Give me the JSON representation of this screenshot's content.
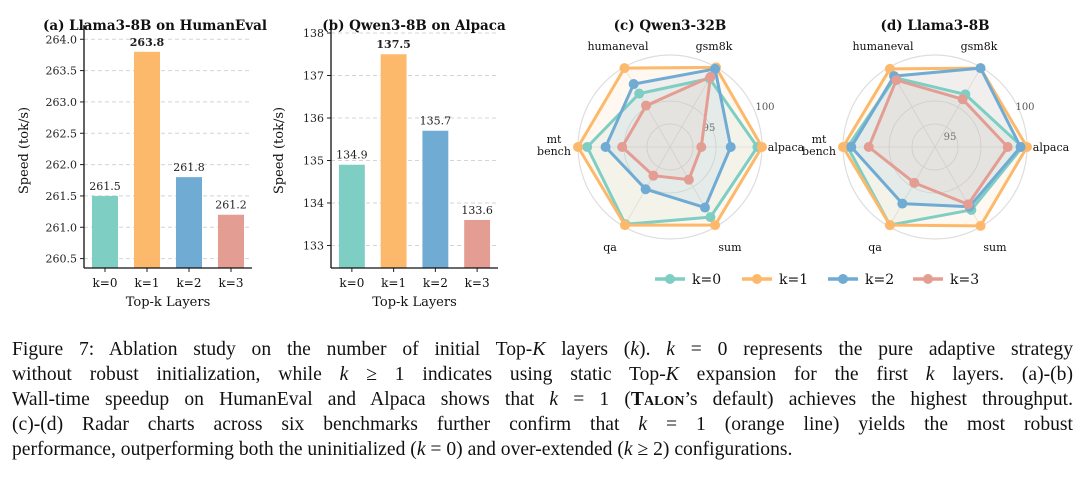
{
  "chart_data": [
    {
      "type": "bar",
      "title": "(a) Llama3-8B on HumanEval",
      "xlabel": "Top-k Layers",
      "ylabel": "Speed (tok/s)",
      "categories": [
        "k=0",
        "k=1",
        "k=2",
        "k=3"
      ],
      "values": [
        261.5,
        263.8,
        261.8,
        261.2
      ],
      "value_labels": [
        "261.5",
        "263.8",
        "261.8",
        "261.2"
      ],
      "bold_label_index": 1,
      "ylim": [
        260.35,
        264.1
      ],
      "yticks": [
        260.5,
        261.0,
        261.5,
        262.0,
        262.5,
        263.0,
        263.5,
        264.0
      ],
      "ytick_labels": [
        "260.5",
        "261.0",
        "261.5",
        "262.0",
        "262.5",
        "263.0",
        "263.5",
        "264.0"
      ],
      "colors": [
        "#7ecec4",
        "#fdb96b",
        "#70abd4",
        "#e49d92"
      ],
      "grid": true
    },
    {
      "type": "bar",
      "title": "(b) Qwen3-8B on Alpaca",
      "xlabel": "Top-k Layers",
      "ylabel": "Speed (tok/s)",
      "categories": [
        "k=0",
        "k=1",
        "k=2",
        "k=3"
      ],
      "values": [
        134.9,
        137.5,
        135.7,
        133.6
      ],
      "value_labels": [
        "134.9",
        "137.5",
        "135.7",
        "133.6"
      ],
      "bold_label_index": 1,
      "ylim": [
        132.47,
        138.0
      ],
      "yticks": [
        133,
        134,
        135,
        136,
        137,
        138
      ],
      "ytick_labels": [
        "133",
        "134",
        "135",
        "136",
        "137",
        "138"
      ],
      "colors": [
        "#7ecec4",
        "#fdb96b",
        "#70abd4",
        "#e49d92"
      ],
      "grid": true
    },
    {
      "type": "radar",
      "title": "(c) Qwen3-32B",
      "axes": [
        "gsm8k",
        "humaneval",
        "mt\nbench",
        "qa",
        "sum",
        "alpaca"
      ],
      "ring_labels": [
        "95",
        "100"
      ],
      "value_scale": "relative radius (0 = center, 1 = outer ring)",
      "series": [
        {
          "name": "k=0",
          "color": "#7ecec4",
          "values": [
            0.86,
            0.67,
            0.9,
            0.97,
            0.88,
            0.95
          ]
        },
        {
          "name": "k=1",
          "color": "#fdb96b",
          "values": [
            1.0,
            0.99,
            1.0,
            0.98,
            0.98,
            1.0
          ]
        },
        {
          "name": "k=2",
          "color": "#70abd4",
          "values": [
            0.98,
            0.79,
            0.7,
            0.53,
            0.76,
            0.66
          ]
        },
        {
          "name": "k=3",
          "color": "#e49d92",
          "values": [
            0.88,
            0.52,
            0.52,
            0.36,
            0.41,
            0.34
          ]
        }
      ]
    },
    {
      "type": "radar",
      "title": "(d) Llama3-8B",
      "axes": [
        "gsm8k",
        "humaneval",
        "mt\nbench",
        "qa",
        "sum",
        "alpaca"
      ],
      "ring_labels": [
        "95",
        "100"
      ],
      "value_scale": "relative radius (0 = center, 1 = outer ring)",
      "series": [
        {
          "name": "k=0",
          "color": "#7ecec4",
          "values": [
            0.66,
            0.87,
            0.95,
            0.98,
            0.79,
            0.95
          ]
        },
        {
          "name": "k=1",
          "color": "#fdb96b",
          "values": [
            0.99,
            0.98,
            1.0,
            0.98,
            0.99,
            1.0
          ]
        },
        {
          "name": "k=2",
          "color": "#70abd4",
          "values": [
            0.99,
            0.89,
            0.91,
            0.71,
            0.75,
            0.93
          ]
        },
        {
          "name": "k=3",
          "color": "#e49d92",
          "values": [
            0.6,
            0.84,
            0.72,
            0.45,
            0.72,
            0.79
          ]
        }
      ]
    }
  ],
  "legend": {
    "position": "bottom-right",
    "items": [
      {
        "label": "k=0",
        "color": "#7ecec4"
      },
      {
        "label": "k=1",
        "color": "#fdb96b"
      },
      {
        "label": "k=2",
        "color": "#70abd4"
      },
      {
        "label": "k=3",
        "color": "#e49d92"
      }
    ]
  },
  "caption": {
    "l1": [
      {
        "t": "Figure 7: Ablation study on the number of initial Top-"
      },
      {
        "t": "K",
        "i": 1
      },
      {
        "t": " layers ("
      },
      {
        "t": "k",
        "i": 1
      },
      {
        "t": "). "
      },
      {
        "t": "k",
        "i": 1
      },
      {
        "t": " = 0 represents the pure adaptive strategy"
      }
    ],
    "l2": [
      {
        "t": "without robust initialization, while "
      },
      {
        "t": "k",
        "i": 1
      },
      {
        "t": " ≥ 1 indicates using static Top-"
      },
      {
        "t": "K",
        "i": 1
      },
      {
        "t": " expansion for the first "
      },
      {
        "t": "k",
        "i": 1
      },
      {
        "t": " layers. (a)-(b)"
      }
    ],
    "l3": [
      {
        "t": "Wall-time speedup on HumanEval and Alpaca shows that "
      },
      {
        "t": "k",
        "i": 1
      },
      {
        "t": " = 1 ("
      },
      {
        "t": "Talon",
        "sc": 1
      },
      {
        "t": "’s default) achieves the highest throughput."
      }
    ],
    "l4": [
      {
        "t": "(c)-(d) Radar charts across six benchmarks further confirm that "
      },
      {
        "t": "k",
        "i": 1
      },
      {
        "t": " = 1 (orange line) yields the most robust"
      }
    ],
    "l5": [
      {
        "t": "performance, outperforming both the uninitialized ("
      },
      {
        "t": "k",
        "i": 1
      },
      {
        "t": " = 0) and over-extended ("
      },
      {
        "t": "k",
        "i": 1
      },
      {
        "t": " ≥ 2) configurations."
      }
    ]
  }
}
